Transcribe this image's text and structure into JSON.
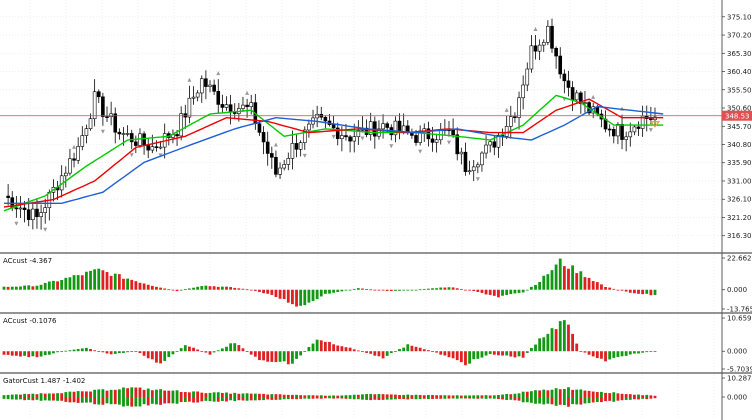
{
  "colors": {
    "grid": "#e6e6e6",
    "separator": "#555555",
    "bull_candle": "#ffffff",
    "bear_candle": "#000000",
    "ma_green": "#00cc00",
    "ma_red": "#ee0000",
    "ma_blue": "#1f5fd6",
    "price_line": "#d94040",
    "price_badge": "#e05050",
    "hist_up": "#119911",
    "hist_down": "#e02020",
    "fractal": "#999999"
  },
  "price_pane": {
    "ticks": [
      "375.10",
      "370.20",
      "365.30",
      "360.40",
      "355.50",
      "350.60",
      "345.70",
      "340.80",
      "335.90",
      "331.00",
      "326.10",
      "321.20",
      "316.30"
    ],
    "tick_values": [
      375.1,
      370.2,
      365.3,
      360.4,
      355.5,
      350.6,
      345.7,
      340.8,
      335.9,
      331.0,
      326.1,
      321.2,
      316.3
    ],
    "current_price": "348.53",
    "current_price_value": 348.53
  },
  "indicator_panes": [
    {
      "title": "ACcust -4.367",
      "ticks": [
        "22.662",
        "0.000",
        "-13.765"
      ],
      "tick_values": [
        22.662,
        0,
        -13.765
      ]
    },
    {
      "title": "ACcust -0.1076",
      "ticks": [
        "10.6598",
        "0.000",
        "-5.7039"
      ],
      "tick_values": [
        10.6598,
        0,
        -5.7039
      ]
    },
    {
      "title": "GatorCust 1.487 -1.402",
      "ticks": [
        "10.287",
        "0.000"
      ],
      "tick_values": [
        10.287,
        0
      ]
    }
  ],
  "chart_data": [
    {
      "type": "candlestick",
      "title": "",
      "ylim": [
        313,
        378
      ],
      "key_points": [
        [
          0,
          327
        ],
        [
          8,
          321
        ],
        [
          18,
          340
        ],
        [
          22,
          353
        ],
        [
          28,
          344
        ],
        [
          36,
          340
        ],
        [
          42,
          345
        ],
        [
          48,
          358
        ],
        [
          53,
          352
        ],
        [
          60,
          350
        ],
        [
          66,
          333
        ],
        [
          70,
          340
        ],
        [
          76,
          347
        ],
        [
          84,
          343
        ],
        [
          92,
          346
        ],
        [
          100,
          343
        ],
        [
          108,
          344
        ],
        [
          112,
          335
        ],
        [
          118,
          340
        ],
        [
          124,
          350
        ],
        [
          128,
          366
        ],
        [
          132,
          372
        ],
        [
          136,
          358
        ],
        [
          140,
          352
        ],
        [
          146,
          346
        ],
        [
          150,
          344
        ],
        [
          155,
          348
        ]
      ],
      "moving_averages": [
        {
          "color": "green",
          "key_points": [
            [
              0,
              323
            ],
            [
              10,
              327
            ],
            [
              20,
              335
            ],
            [
              30,
              342
            ],
            [
              40,
              343
            ],
            [
              50,
              349
            ],
            [
              60,
              350
            ],
            [
              68,
              343
            ],
            [
              78,
              345
            ],
            [
              90,
              344
            ],
            [
              100,
              344
            ],
            [
              110,
              343
            ],
            [
              118,
              342
            ],
            [
              126,
              346
            ],
            [
              134,
              354
            ],
            [
              140,
              352
            ],
            [
              148,
              346
            ],
            [
              155,
              346
            ]
          ]
        },
        {
          "color": "red",
          "key_points": [
            [
              0,
              324
            ],
            [
              12,
              326
            ],
            [
              22,
              331
            ],
            [
              32,
              340
            ],
            [
              44,
              343
            ],
            [
              54,
              348
            ],
            [
              64,
              347
            ],
            [
              74,
              344
            ],
            [
              86,
              345
            ],
            [
              98,
              344
            ],
            [
              108,
              345
            ],
            [
              118,
              344
            ],
            [
              126,
              344
            ],
            [
              134,
              350
            ],
            [
              142,
              353
            ],
            [
              150,
              348
            ],
            [
              158,
              348
            ]
          ]
        },
        {
          "color": "blue",
          "key_points": [
            [
              0,
              325
            ],
            [
              14,
              325
            ],
            [
              24,
              328
            ],
            [
              34,
              336
            ],
            [
              46,
              341
            ],
            [
              56,
              345
            ],
            [
              66,
              348
            ],
            [
              76,
              347
            ],
            [
              88,
              345
            ],
            [
              100,
              344
            ],
            [
              110,
              345
            ],
            [
              120,
              343
            ],
            [
              128,
              342
            ],
            [
              136,
              346
            ],
            [
              144,
              351
            ],
            [
              152,
              350
            ],
            [
              160,
              349
            ]
          ]
        }
      ]
    },
    {
      "type": "bar",
      "title": "ACcust -4.367",
      "ylim": [
        -13.765,
        22.662
      ],
      "key_points": [
        [
          0,
          2
        ],
        [
          8,
          3
        ],
        [
          15,
          8
        ],
        [
          23,
          14
        ],
        [
          30,
          8
        ],
        [
          36,
          3
        ],
        [
          42,
          -1
        ],
        [
          48,
          3
        ],
        [
          54,
          2
        ],
        [
          60,
          0
        ],
        [
          66,
          -5
        ],
        [
          72,
          -12
        ],
        [
          78,
          -3
        ],
        [
          86,
          1
        ],
        [
          94,
          -1
        ],
        [
          100,
          0
        ],
        [
          108,
          2
        ],
        [
          114,
          -1
        ],
        [
          120,
          -5
        ],
        [
          126,
          -2
        ],
        [
          130,
          6
        ],
        [
          135,
          20
        ],
        [
          140,
          12
        ],
        [
          146,
          2
        ],
        [
          152,
          -2
        ],
        [
          158,
          -4
        ]
      ]
    },
    {
      "type": "bar",
      "title": "ACcust -0.1076",
      "ylim": [
        -5.7039,
        10.6598
      ],
      "key_points": [
        [
          0,
          -1
        ],
        [
          8,
          -2
        ],
        [
          14,
          0
        ],
        [
          20,
          1
        ],
        [
          26,
          -1
        ],
        [
          32,
          0
        ],
        [
          38,
          -4
        ],
        [
          44,
          2
        ],
        [
          50,
          -1
        ],
        [
          56,
          3
        ],
        [
          62,
          -3
        ],
        [
          70,
          -4
        ],
        [
          76,
          4
        ],
        [
          84,
          1
        ],
        [
          92,
          -2
        ],
        [
          98,
          2
        ],
        [
          104,
          0
        ],
        [
          112,
          -4
        ],
        [
          118,
          -1
        ],
        [
          126,
          -2
        ],
        [
          130,
          4
        ],
        [
          136,
          10
        ],
        [
          140,
          0
        ],
        [
          146,
          -3
        ],
        [
          152,
          -1
        ],
        [
          158,
          0
        ]
      ]
    },
    {
      "type": "bar",
      "title": "GatorCust 1.487 -1.402",
      "ylim": [
        -10.287,
        10.287
      ],
      "key_points": [
        [
          0,
          2
        ],
        [
          10,
          4
        ],
        [
          20,
          6
        ],
        [
          30,
          10
        ],
        [
          40,
          7
        ],
        [
          48,
          5
        ],
        [
          56,
          4
        ],
        [
          64,
          3
        ],
        [
          72,
          2
        ],
        [
          80,
          1.5
        ],
        [
          88,
          3
        ],
        [
          96,
          2.5
        ],
        [
          104,
          2
        ],
        [
          112,
          1.5
        ],
        [
          120,
          2
        ],
        [
          128,
          6
        ],
        [
          136,
          10
        ],
        [
          144,
          6
        ],
        [
          152,
          3
        ],
        [
          158,
          1.5
        ]
      ]
    }
  ]
}
